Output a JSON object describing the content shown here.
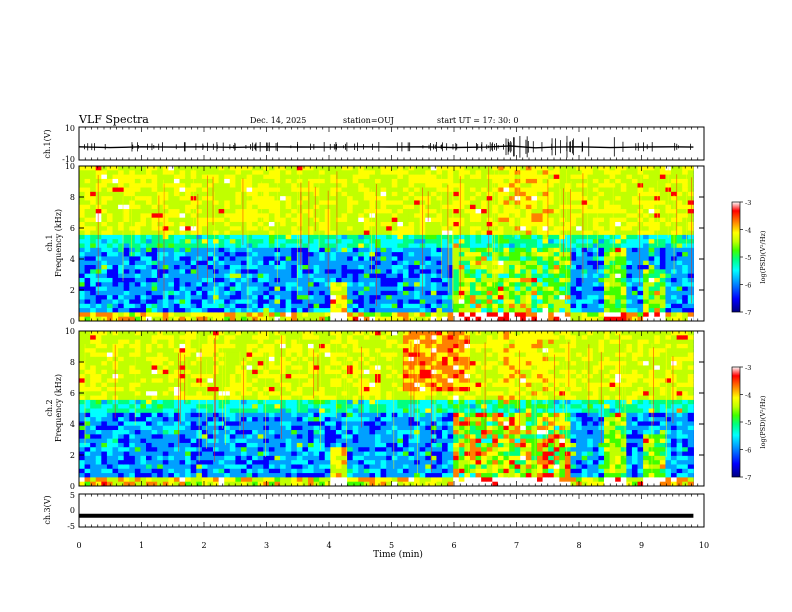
{
  "header": {
    "title": "VLF Spectra",
    "date": "Dec. 14, 2025",
    "station": "station=OUJ",
    "start": "start  UT  =   17: 30: 0"
  },
  "chart_data": [
    {
      "type": "line",
      "name": "ch.1 waveform",
      "ylabel": "ch.1(V)",
      "ylim": [
        -10,
        10
      ],
      "yticks": [
        10,
        -10
      ],
      "x": [
        0,
        0.5,
        1,
        1.5,
        2,
        2.5,
        3,
        3.5,
        4,
        4.5,
        5,
        5.5,
        6,
        6.5,
        6.9,
        7.3,
        7.6,
        8,
        8.5,
        9,
        9.5,
        9.83
      ],
      "values": [
        -2,
        -2.5,
        -2,
        -2.2,
        -2,
        -2.3,
        -2,
        -2.1,
        -2.2,
        -2,
        -2.1,
        -2,
        -2.4,
        -2.2,
        -1.5,
        -2.6,
        -2.2,
        -2,
        -2.5,
        -2.1,
        -2,
        -2.2
      ]
    },
    {
      "type": "heatmap",
      "name": "ch.1 spectrogram",
      "ylabel": "ch.1 Frequency (kHz)",
      "ylim": [
        0,
        10
      ],
      "yticks": [
        0,
        2,
        4,
        6,
        8,
        10
      ],
      "colorbar": {
        "label": "log(PSD)(V²/Hz)",
        "range": [
          -7,
          -3
        ],
        "ticks": [
          -3,
          -4,
          -5,
          -6,
          -7
        ]
      }
    },
    {
      "type": "heatmap",
      "name": "ch.2 spectrogram",
      "ylabel": "ch.2 Frequency (kHz)",
      "ylim": [
        0,
        10
      ],
      "yticks": [
        0,
        2,
        4,
        6,
        8,
        10
      ],
      "colorbar": {
        "label": "log(PSD)(V²/Hz)",
        "range": [
          -7,
          -3
        ],
        "ticks": [
          -3,
          -4,
          -5,
          -6,
          -7
        ]
      }
    },
    {
      "type": "line",
      "name": "ch.3 waveform",
      "ylabel": "ch.3(V)",
      "ylim": [
        -5,
        5
      ],
      "yticks": [
        5,
        0,
        -5
      ],
      "x": [
        0,
        9.83
      ],
      "values": [
        -1.6,
        -1.6
      ]
    }
  ],
  "xaxis": {
    "xlabel": "Time (min)",
    "xlim": [
      0,
      10
    ],
    "ticks": [
      "0",
      "1",
      "2",
      "3",
      "4",
      "5",
      "6",
      "7",
      "8",
      "9",
      "10"
    ],
    "data_end": 9.83
  },
  "colors": {
    "wave": "#000000",
    "colormap": [
      "#000080",
      "#0000ff",
      "#00a0ff",
      "#00ffff",
      "#00ff80",
      "#40ff00",
      "#c0ff00",
      "#ffff00",
      "#ff8000",
      "#ff0000",
      "#ffffff"
    ]
  }
}
